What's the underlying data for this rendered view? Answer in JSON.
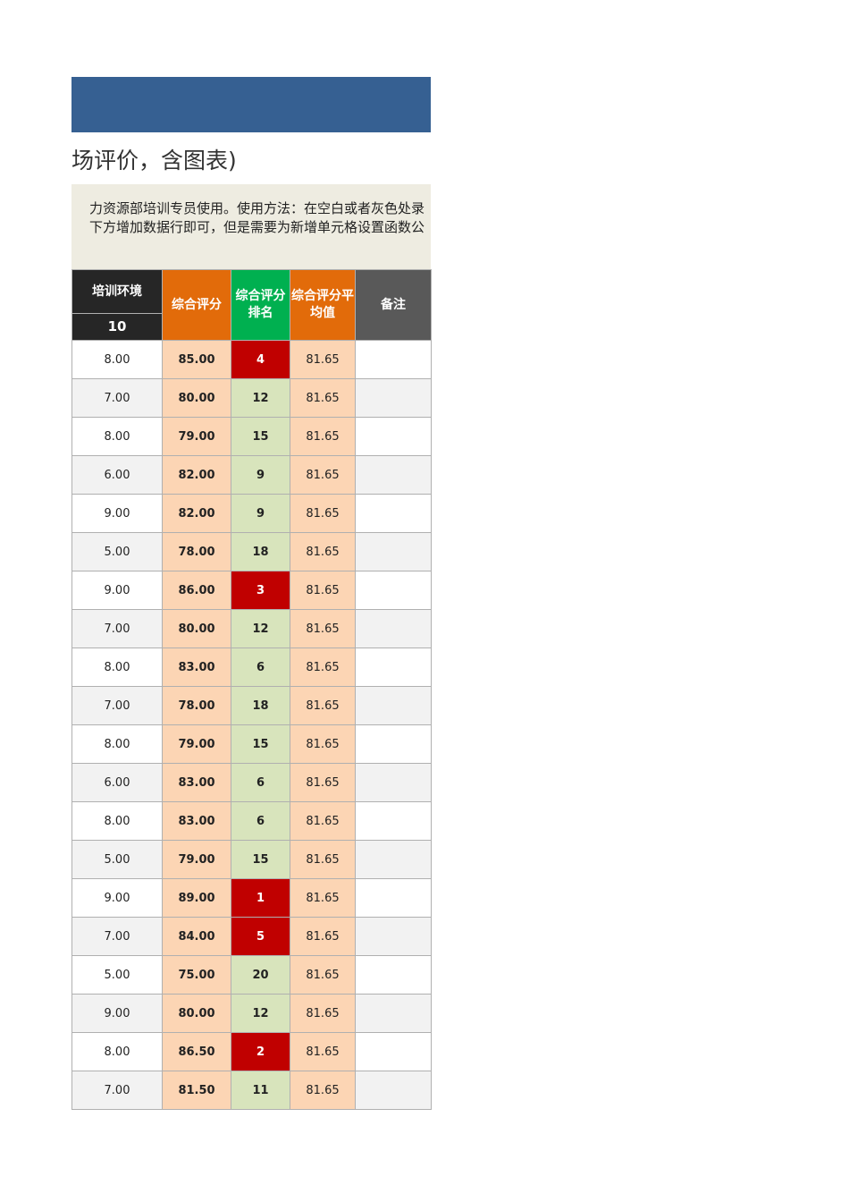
{
  "title": "场评价，含图表)",
  "description": [
    "力资源部培训专员使用。使用方法：在空白或者灰色处录",
    "下方增加数据行即可，但是需要为新增单元格设置函数公"
  ],
  "headers": {
    "env": "培训环境",
    "env_weight": "10",
    "score": "综合评分",
    "rank": "综合评分排名",
    "avg": "综合评分平均值",
    "note": "备注"
  },
  "colors": {
    "banner": "#366092",
    "top_rank": "#c00000",
    "rank": "#d8e4bc",
    "score": "#fcd5b4"
  },
  "rows": [
    {
      "env": "8.00",
      "score": "85.00",
      "rank": "4",
      "avg": "81.65",
      "note": "",
      "top": true
    },
    {
      "env": "7.00",
      "score": "80.00",
      "rank": "12",
      "avg": "81.65",
      "note": "",
      "top": false
    },
    {
      "env": "8.00",
      "score": "79.00",
      "rank": "15",
      "avg": "81.65",
      "note": "",
      "top": false
    },
    {
      "env": "6.00",
      "score": "82.00",
      "rank": "9",
      "avg": "81.65",
      "note": "",
      "top": false
    },
    {
      "env": "9.00",
      "score": "82.00",
      "rank": "9",
      "avg": "81.65",
      "note": "",
      "top": false
    },
    {
      "env": "5.00",
      "score": "78.00",
      "rank": "18",
      "avg": "81.65",
      "note": "",
      "top": false
    },
    {
      "env": "9.00",
      "score": "86.00",
      "rank": "3",
      "avg": "81.65",
      "note": "",
      "top": true
    },
    {
      "env": "7.00",
      "score": "80.00",
      "rank": "12",
      "avg": "81.65",
      "note": "",
      "top": false
    },
    {
      "env": "8.00",
      "score": "83.00",
      "rank": "6",
      "avg": "81.65",
      "note": "",
      "top": false
    },
    {
      "env": "7.00",
      "score": "78.00",
      "rank": "18",
      "avg": "81.65",
      "note": "",
      "top": false
    },
    {
      "env": "8.00",
      "score": "79.00",
      "rank": "15",
      "avg": "81.65",
      "note": "",
      "top": false
    },
    {
      "env": "6.00",
      "score": "83.00",
      "rank": "6",
      "avg": "81.65",
      "note": "",
      "top": false
    },
    {
      "env": "8.00",
      "score": "83.00",
      "rank": "6",
      "avg": "81.65",
      "note": "",
      "top": false
    },
    {
      "env": "5.00",
      "score": "79.00",
      "rank": "15",
      "avg": "81.65",
      "note": "",
      "top": false
    },
    {
      "env": "9.00",
      "score": "89.00",
      "rank": "1",
      "avg": "81.65",
      "note": "",
      "top": true
    },
    {
      "env": "7.00",
      "score": "84.00",
      "rank": "5",
      "avg": "81.65",
      "note": "",
      "top": true
    },
    {
      "env": "5.00",
      "score": "75.00",
      "rank": "20",
      "avg": "81.65",
      "note": "",
      "top": false
    },
    {
      "env": "9.00",
      "score": "80.00",
      "rank": "12",
      "avg": "81.65",
      "note": "",
      "top": false
    },
    {
      "env": "8.00",
      "score": "86.50",
      "rank": "2",
      "avg": "81.65",
      "note": "",
      "top": true
    },
    {
      "env": "7.00",
      "score": "81.50",
      "rank": "11",
      "avg": "81.65",
      "note": "",
      "top": false
    }
  ]
}
